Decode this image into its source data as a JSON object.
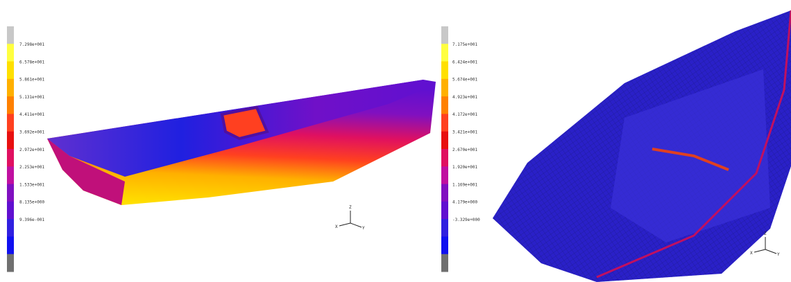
{
  "left_panel": {
    "legend_labels": [
      "7.298e+001",
      "6.578e+001",
      "5.861e+001",
      "5.131e+001",
      "4.411e+001",
      "3.692e+001",
      "2.972e+001",
      "2.253e+001",
      "1.533e+001",
      "8.135e+000",
      "9.396e-001"
    ],
    "triad": {
      "z": "Z",
      "x": "X",
      "y": "Y"
    }
  },
  "right_panel": {
    "legend_labels": [
      "7.175e+001",
      "6.424e+001",
      "5.674e+001",
      "4.923e+001",
      "4.172e+001",
      "3.421e+001",
      "2.670e+001",
      "1.920e+001",
      "1.169e+001",
      "4.179e+000",
      "-3.329e+000"
    ],
    "triad": {
      "z": "Z",
      "x": "X",
      "y": "Y"
    }
  }
}
